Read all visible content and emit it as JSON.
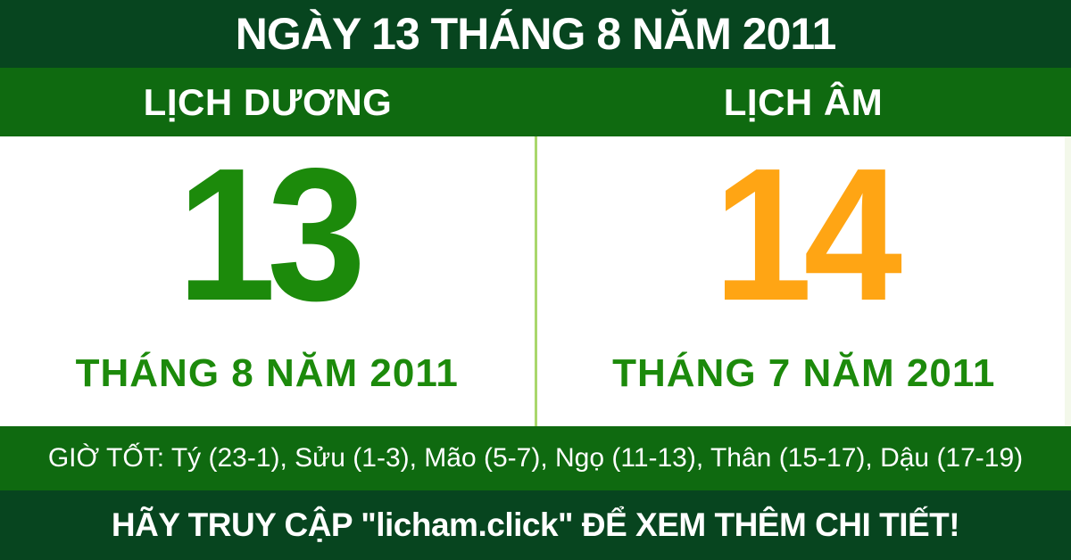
{
  "header": {
    "title": "NGÀY 13 THÁNG 8 NĂM 2011"
  },
  "calendar": {
    "solar": {
      "label": "LỊCH DƯƠNG",
      "day": "13",
      "month_year": "THÁNG 8 NĂM 2011"
    },
    "lunar": {
      "label": "LỊCH ÂM",
      "day": "14",
      "month_year": "THÁNG 7 NĂM 2011"
    }
  },
  "good_hours": {
    "text": "GIỜ TỐT: Tý (23-1), Sửu (1-3), Mão (5-7), Ngọ (11-13), Thân (15-17), Dậu (17-19)"
  },
  "footer": {
    "text": "HÃY TRUY CẬP \"licham.click\" ĐỂ XEM THÊM CHI TIẾT!"
  },
  "colors": {
    "dark_green_bar": "#07451f",
    "medium_green_bar": "#0f6a10",
    "solar_day_green": "#1c8a0b",
    "lunar_day_orange": "#ffa514",
    "divider_light_green": "#a9d76c",
    "text_white": "#ffffff"
  }
}
